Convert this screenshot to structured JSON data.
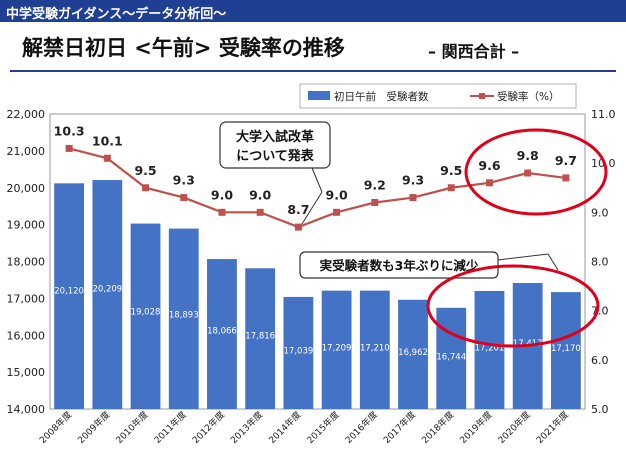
{
  "header": {
    "banner": "中学受験ガイダンス～データ分析回～",
    "title": "解禁日初日 <午前> 受験率の推移",
    "subtitle": "– 関西合計 –"
  },
  "colors": {
    "banner": "#1f3f92",
    "bars": "#4472c4",
    "line": "#c0504d",
    "highlight": "#e0001b"
  },
  "annotations": {
    "reform": "大学入試改革\nについて発表",
    "decrease": "実受験者数も3年ぶりに減少"
  },
  "chart_data": {
    "type": "bar",
    "categories": [
      "2008年度",
      "2009年度",
      "2010年度",
      "2011年度",
      "2012年度",
      "2013年度",
      "2014年度",
      "2015年度",
      "2016年度",
      "2017年度",
      "2018年度",
      "2019年度",
      "2020年度",
      "2021年度"
    ],
    "series": [
      {
        "name": "初日午前　受験者数",
        "type": "bar",
        "axis": "left",
        "values": [
          20120,
          20209,
          19028,
          18893,
          18066,
          17816,
          17039,
          17209,
          17210,
          16962,
          16744,
          17201,
          17417,
          17170
        ],
        "labels": [
          "20,120",
          "20,209",
          "19,028",
          "18,893",
          "18,066",
          "17,816",
          "17,039",
          "17,209",
          "17,210",
          "16,962",
          "16,744",
          "17,201",
          "17,417",
          "17,170"
        ]
      },
      {
        "name": "受験率（%）",
        "type": "line",
        "axis": "right",
        "values": [
          10.3,
          10.1,
          9.5,
          9.3,
          9.0,
          9.0,
          8.7,
          9.0,
          9.2,
          9.3,
          9.5,
          9.6,
          9.8,
          9.7
        ],
        "labels": [
          "10.3",
          "10.1",
          "9.5",
          "9.3",
          "9.0",
          "9.0",
          "8.7",
          "9.0",
          "9.2",
          "9.3",
          "9.5",
          "9.6",
          "9.8",
          "9.7"
        ]
      }
    ],
    "ylim_left": [
      14000,
      22000
    ],
    "yticks_left": [
      "14,000",
      "15,000",
      "16,000",
      "17,000",
      "18,000",
      "19,000",
      "20,000",
      "21,000",
      "22,000"
    ],
    "ylim_right": [
      5.0,
      11.0
    ],
    "yticks_right": [
      "5.0",
      "6.0",
      "7.0",
      "8.0",
      "9.0",
      "10.0",
      "11.0"
    ],
    "legend_position": "top-right",
    "grid": false
  }
}
